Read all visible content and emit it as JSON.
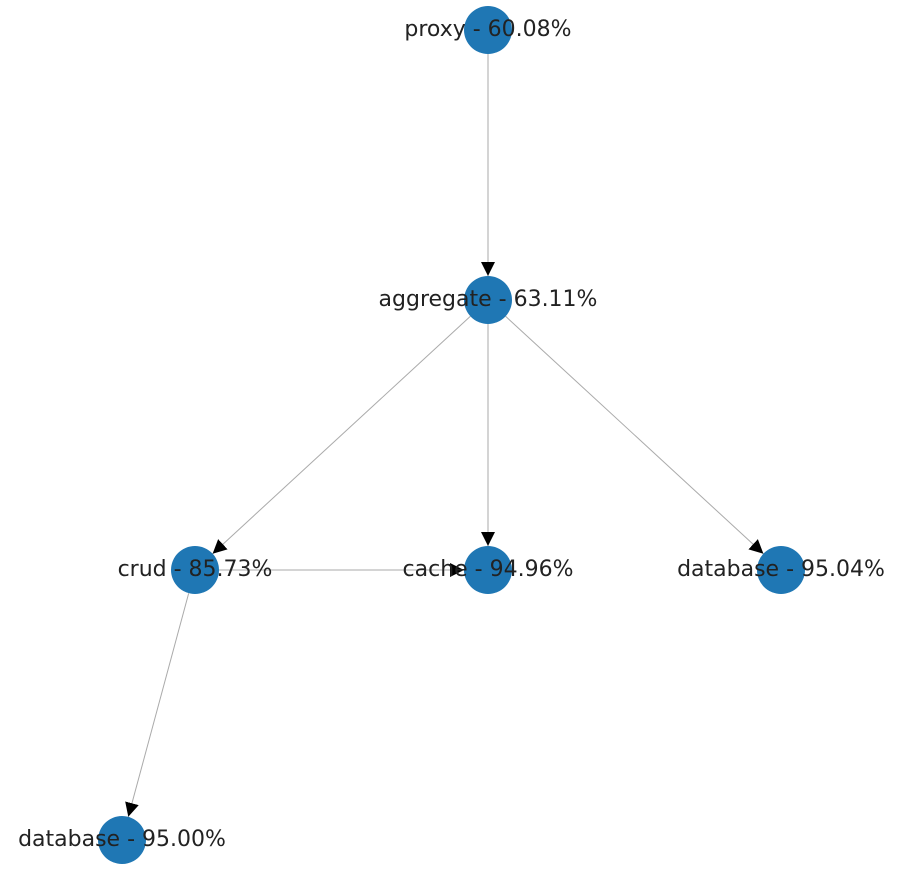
{
  "nodes": [
    {
      "label": "proxy - 60.08%"
    },
    {
      "label": "aggregate - 63.11%"
    },
    {
      "label": "crud - 85.73%"
    },
    {
      "label": "cache - 94.96%"
    },
    {
      "label": "database - 95.04%"
    },
    {
      "label": "database - 95.00%"
    }
  ]
}
